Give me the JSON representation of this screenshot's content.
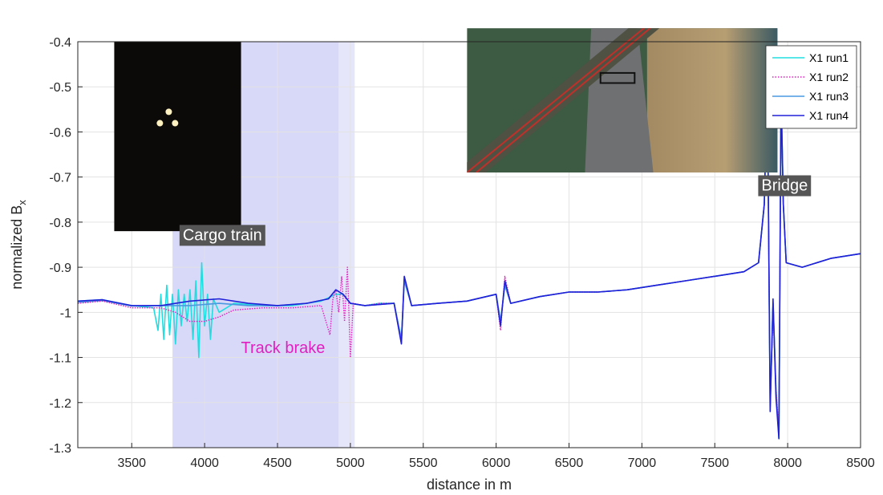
{
  "chart_data": {
    "type": "line",
    "title": "",
    "xlabel": "distance in m",
    "ylabel": "normalized B",
    "ylabel_subscript": "x",
    "xlim": [
      3130,
      8500
    ],
    "ylim": [
      -1.3,
      -0.4
    ],
    "xticks": [
      3500,
      4000,
      4500,
      5000,
      5500,
      6000,
      6500,
      7000,
      7500,
      8000,
      8500
    ],
    "yticks": [
      -0.4,
      -0.5,
      -0.6,
      -0.7,
      -0.8,
      -0.9,
      -1,
      -1.1,
      -1.2,
      -1.3
    ],
    "grid": true,
    "legend_position": "top-right",
    "shaded_regions": [
      {
        "x0": 3780,
        "x1": 4920,
        "color": "#c8c8f5"
      },
      {
        "x0": 4920,
        "x1": 5030,
        "color": "#dcdcf8"
      }
    ],
    "annotations": [
      {
        "text": "Cargo train",
        "x": 3850,
        "y": -0.84,
        "style": "dark-box"
      },
      {
        "text": "Bridge",
        "x": 7820,
        "y": -0.73,
        "style": "dark-box"
      },
      {
        "text": "Track brake",
        "x": 4250,
        "y": -1.09,
        "style": "magenta"
      }
    ],
    "insets": [
      {
        "name": "cargo-train-photo",
        "x0": 3380,
        "x1": 4250,
        "y0": -0.4,
        "y1": -0.82
      },
      {
        "name": "bridge-aerial-photo",
        "x0": 5800,
        "x1": 7930,
        "y0": -0.37,
        "y1": -0.69
      }
    ],
    "series": [
      {
        "name": "X1 run1",
        "color": "#22dde0",
        "style": "solid",
        "points": [
          [
            3130,
            -0.975
          ],
          [
            3300,
            -0.972
          ],
          [
            3500,
            -0.985
          ],
          [
            3650,
            -0.99
          ],
          [
            3680,
            -1.04
          ],
          [
            3700,
            -0.96
          ],
          [
            3720,
            -1.06
          ],
          [
            3740,
            -0.94
          ],
          [
            3760,
            -1.05
          ],
          [
            3780,
            -0.96
          ],
          [
            3800,
            -1.07
          ],
          [
            3820,
            -0.95
          ],
          [
            3840,
            -1.03
          ],
          [
            3860,
            -0.96
          ],
          [
            3880,
            -1.02
          ],
          [
            3900,
            -0.95
          ],
          [
            3920,
            -1.06
          ],
          [
            3940,
            -0.93
          ],
          [
            3960,
            -1.1
          ],
          [
            3980,
            -0.89
          ],
          [
            4000,
            -1.03
          ],
          [
            4020,
            -0.96
          ],
          [
            4040,
            -1.06
          ],
          [
            4060,
            -0.97
          ],
          [
            4100,
            -1.0
          ],
          [
            4200,
            -0.98
          ],
          [
            4400,
            -0.985
          ],
          [
            4600,
            -0.985
          ],
          [
            4800,
            -0.975
          ],
          [
            4900,
            -0.96
          ],
          [
            4950,
            -0.96
          ],
          [
            5000,
            -0.98
          ],
          [
            5100,
            -0.985
          ],
          [
            5200,
            -0.98
          ],
          [
            5300,
            -0.98
          ],
          [
            5350,
            -1.06
          ],
          [
            5370,
            -0.93
          ],
          [
            5420,
            -0.985
          ],
          [
            5600,
            -0.98
          ],
          [
            5800,
            -0.975
          ],
          [
            6000,
            -0.96
          ],
          [
            6030,
            -1.02
          ],
          [
            6060,
            -0.94
          ],
          [
            6100,
            -0.98
          ],
          [
            6300,
            -0.965
          ],
          [
            6500,
            -0.955
          ],
          [
            6700,
            -0.955
          ],
          [
            6900,
            -0.95
          ],
          [
            7100,
            -0.94
          ],
          [
            7300,
            -0.93
          ],
          [
            7500,
            -0.92
          ],
          [
            7700,
            -0.91
          ],
          [
            7800,
            -0.89
          ],
          [
            7840,
            -0.76
          ],
          [
            7860,
            -0.47
          ],
          [
            7880,
            -1.2
          ],
          [
            7900,
            -0.98
          ],
          [
            7920,
            -1.17
          ],
          [
            7940,
            -1.28
          ],
          [
            7955,
            -0.52
          ],
          [
            7970,
            -0.76
          ],
          [
            7990,
            -0.89
          ],
          [
            8100,
            -0.9
          ],
          [
            8300,
            -0.88
          ],
          [
            8500,
            -0.87
          ]
        ]
      },
      {
        "name": "X1 run2",
        "color": "#e020c0",
        "style": "dotted",
        "points": [
          [
            3130,
            -0.98
          ],
          [
            3300,
            -0.975
          ],
          [
            3500,
            -0.99
          ],
          [
            3700,
            -0.99
          ],
          [
            3800,
            -1.0
          ],
          [
            3900,
            -1.02
          ],
          [
            4000,
            -1.02
          ],
          [
            4100,
            -1.01
          ],
          [
            4200,
            -0.995
          ],
          [
            4400,
            -0.99
          ],
          [
            4600,
            -0.99
          ],
          [
            4800,
            -0.985
          ],
          [
            4860,
            -1.05
          ],
          [
            4880,
            -0.97
          ],
          [
            4900,
            -0.95
          ],
          [
            4920,
            -1.0
          ],
          [
            4940,
            -0.92
          ],
          [
            4960,
            -1.02
          ],
          [
            4980,
            -0.9
          ],
          [
            5000,
            -1.1
          ],
          [
            5020,
            -0.98
          ],
          [
            5100,
            -0.985
          ],
          [
            5200,
            -0.98
          ],
          [
            5300,
            -0.98
          ],
          [
            5350,
            -1.07
          ],
          [
            5370,
            -0.92
          ],
          [
            5420,
            -0.985
          ],
          [
            5600,
            -0.98
          ],
          [
            5800,
            -0.975
          ],
          [
            6000,
            -0.96
          ],
          [
            6030,
            -1.04
          ],
          [
            6060,
            -0.92
          ],
          [
            6100,
            -0.98
          ],
          [
            6300,
            -0.965
          ],
          [
            6500,
            -0.955
          ],
          [
            6700,
            -0.955
          ],
          [
            6900,
            -0.95
          ],
          [
            7100,
            -0.94
          ],
          [
            7300,
            -0.93
          ],
          [
            7500,
            -0.92
          ],
          [
            7700,
            -0.91
          ],
          [
            7800,
            -0.89
          ],
          [
            7840,
            -0.76
          ],
          [
            7860,
            -0.49
          ],
          [
            7880,
            -1.2
          ],
          [
            7900,
            -1.0
          ],
          [
            7920,
            -1.17
          ],
          [
            7940,
            -1.26
          ],
          [
            7955,
            -0.53
          ],
          [
            7970,
            -0.76
          ],
          [
            7990,
            -0.89
          ],
          [
            8100,
            -0.9
          ],
          [
            8300,
            -0.88
          ],
          [
            8500,
            -0.87
          ]
        ]
      },
      {
        "name": "X1 run3",
        "color": "#4a98e0",
        "style": "solid",
        "points": [
          [
            3130,
            -0.978
          ],
          [
            3300,
            -0.974
          ],
          [
            3500,
            -0.986
          ],
          [
            3700,
            -0.985
          ],
          [
            3900,
            -0.985
          ],
          [
            4100,
            -0.98
          ],
          [
            4300,
            -0.985
          ],
          [
            4500,
            -0.985
          ],
          [
            4700,
            -0.98
          ],
          [
            4850,
            -0.97
          ],
          [
            4900,
            -0.95
          ],
          [
            4950,
            -0.96
          ],
          [
            5000,
            -0.98
          ],
          [
            5100,
            -0.985
          ],
          [
            5300,
            -0.98
          ],
          [
            5350,
            -1.06
          ],
          [
            5370,
            -0.93
          ],
          [
            5420,
            -0.985
          ],
          [
            5600,
            -0.98
          ],
          [
            5800,
            -0.975
          ],
          [
            6000,
            -0.96
          ],
          [
            6030,
            -1.02
          ],
          [
            6060,
            -0.94
          ],
          [
            6100,
            -0.98
          ],
          [
            6300,
            -0.965
          ],
          [
            6500,
            -0.955
          ],
          [
            6700,
            -0.955
          ],
          [
            6900,
            -0.95
          ],
          [
            7100,
            -0.94
          ],
          [
            7300,
            -0.93
          ],
          [
            7500,
            -0.92
          ],
          [
            7700,
            -0.91
          ],
          [
            7800,
            -0.89
          ],
          [
            7840,
            -0.76
          ],
          [
            7860,
            -0.48
          ],
          [
            7880,
            -1.21
          ],
          [
            7900,
            -0.98
          ],
          [
            7920,
            -1.18
          ],
          [
            7940,
            -1.27
          ],
          [
            7955,
            -0.5
          ],
          [
            7970,
            -0.76
          ],
          [
            7990,
            -0.89
          ],
          [
            8100,
            -0.9
          ],
          [
            8300,
            -0.88
          ],
          [
            8500,
            -0.87
          ]
        ]
      },
      {
        "name": "X1 run4",
        "color": "#2020d8",
        "style": "solid",
        "points": [
          [
            3130,
            -0.975
          ],
          [
            3300,
            -0.972
          ],
          [
            3500,
            -0.985
          ],
          [
            3700,
            -0.985
          ],
          [
            3900,
            -0.975
          ],
          [
            4100,
            -0.97
          ],
          [
            4300,
            -0.98
          ],
          [
            4500,
            -0.985
          ],
          [
            4700,
            -0.98
          ],
          [
            4850,
            -0.97
          ],
          [
            4900,
            -0.95
          ],
          [
            4950,
            -0.96
          ],
          [
            5000,
            -0.98
          ],
          [
            5100,
            -0.985
          ],
          [
            5300,
            -0.98
          ],
          [
            5350,
            -1.07
          ],
          [
            5370,
            -0.92
          ],
          [
            5420,
            -0.985
          ],
          [
            5600,
            -0.98
          ],
          [
            5800,
            -0.975
          ],
          [
            6000,
            -0.96
          ],
          [
            6030,
            -1.03
          ],
          [
            6060,
            -0.93
          ],
          [
            6100,
            -0.98
          ],
          [
            6300,
            -0.965
          ],
          [
            6500,
            -0.955
          ],
          [
            6700,
            -0.955
          ],
          [
            6900,
            -0.95
          ],
          [
            7100,
            -0.94
          ],
          [
            7300,
            -0.93
          ],
          [
            7500,
            -0.92
          ],
          [
            7700,
            -0.91
          ],
          [
            7800,
            -0.89
          ],
          [
            7840,
            -0.76
          ],
          [
            7860,
            -0.46
          ],
          [
            7880,
            -1.22
          ],
          [
            7900,
            -0.97
          ],
          [
            7920,
            -1.19
          ],
          [
            7940,
            -1.28
          ],
          [
            7955,
            -0.51
          ],
          [
            7970,
            -0.76
          ],
          [
            7990,
            -0.89
          ],
          [
            8100,
            -0.9
          ],
          [
            8300,
            -0.88
          ],
          [
            8500,
            -0.87
          ]
        ]
      }
    ]
  }
}
